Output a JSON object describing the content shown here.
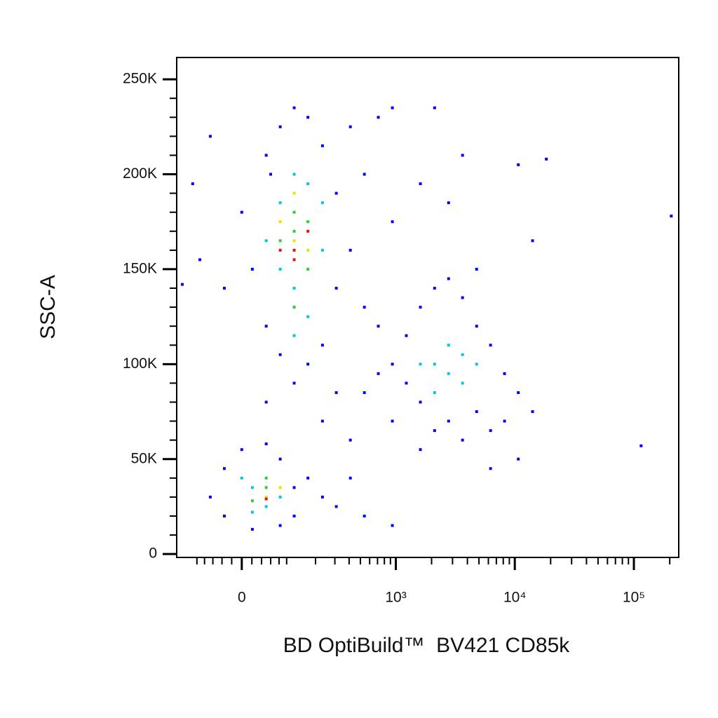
{
  "chart_data": {
    "type": "scatter",
    "x_label": "BD OptiBuild™  BV421 CD85k",
    "y_label": "SSC-A",
    "xscale": "arcsinh",
    "xscale_cofactor": 102,
    "xlim": [
      -165,
      238000
    ],
    "ylim": [
      -1800,
      261500
    ],
    "xticks": [
      0,
      {
        "value": 1000,
        "label": "10³"
      },
      {
        "value": 10000,
        "label": "10⁴"
      },
      {
        "value": 100000,
        "label": "10⁵"
      }
    ],
    "xminorticks": [
      -100,
      -80,
      -60,
      -40,
      -20,
      20,
      40,
      60,
      80,
      100,
      200,
      300,
      400,
      500,
      600,
      700,
      800,
      900,
      2000,
      3000,
      4000,
      5000,
      6000,
      7000,
      8000,
      9000,
      20000,
      30000,
      40000,
      50000,
      60000,
      70000,
      80000,
      90000,
      200000
    ],
    "yticks": [
      0,
      {
        "value": 50000,
        "label": "50K"
      },
      {
        "value": 100000,
        "label": "100K"
      },
      {
        "value": 150000,
        "label": "150K"
      },
      {
        "value": 200000,
        "label": "200K"
      },
      {
        "value": 250000,
        "label": "250K"
      }
    ],
    "yminorticks": [
      10000,
      20000,
      30000,
      40000,
      60000,
      70000,
      80000,
      90000,
      110000,
      120000,
      130000,
      140000,
      160000,
      170000,
      180000,
      190000,
      210000,
      220000,
      230000,
      240000
    ],
    "series": [
      {
        "color": "#0000ff",
        "x": [
          50,
          60,
          83,
          122,
          169,
          232,
          309,
          410,
          541,
          711,
          935,
          309,
          232,
          169,
          83,
          21,
          -35,
          0,
          50,
          410,
          541,
          711,
          122,
          50,
          232,
          410,
          309,
          1226,
          1610,
          2120,
          2780,
          3640,
          4780,
          6260,
          8200,
          10700,
          8200,
          6260,
          4780,
          3640,
          2780,
          2120,
          1610,
          1226,
          935,
          711,
          541,
          935,
          1610,
          10700,
          6260,
          14100,
          -66,
          -35,
          0,
          50,
          83,
          122,
          122,
          83,
          21,
          -35,
          169,
          232,
          309,
          410,
          541,
          935,
          -66,
          -112,
          -92,
          -145,
          115000,
          206000,
          2120,
          3640,
          10700,
          14100,
          18400,
          2780,
          1610,
          4780,
          935
        ],
        "values": [
          120000,
          200000,
          225000,
          235000,
          230000,
          215000,
          190000,
          160000,
          200000,
          230000,
          235000,
          140000,
          110000,
          100000,
          105000,
          150000,
          140000,
          180000,
          210000,
          225000,
          130000,
          120000,
          90000,
          80000,
          70000,
          60000,
          85000,
          115000,
          130000,
          140000,
          145000,
          135000,
          120000,
          110000,
          95000,
          85000,
          70000,
          65000,
          75000,
          60000,
          70000,
          65000,
          80000,
          90000,
          100000,
          95000,
          85000,
          70000,
          55000,
          50000,
          45000,
          75000,
          30000,
          45000,
          55000,
          58000,
          50000,
          35000,
          20000,
          15000,
          13000,
          20000,
          40000,
          30000,
          25000,
          40000,
          20000,
          15000,
          220000,
          195000,
          155000,
          142000,
          57000,
          178000,
          235000,
          210000,
          205000,
          165000,
          208000,
          185000,
          195000,
          150000,
          175000
        ]
      },
      {
        "color": "#00c8e8",
        "x": [
          83,
          122,
          169,
          83,
          169,
          122,
          232,
          50,
          122,
          232,
          2120,
          2780,
          3640,
          4780,
          2780,
          3640,
          1610,
          2120,
          21,
          50,
          0,
          83,
          21
        ],
        "values": [
          185000,
          200000,
          195000,
          150000,
          125000,
          115000,
          160000,
          165000,
          140000,
          185000,
          100000,
          95000,
          90000,
          100000,
          110000,
          105000,
          100000,
          85000,
          35000,
          25000,
          40000,
          30000,
          22000
        ]
      },
      {
        "color": "#33cc33",
        "x": [
          122,
          169,
          122,
          83,
          169,
          122,
          50,
          21,
          50
        ],
        "values": [
          170000,
          175000,
          180000,
          165000,
          150000,
          130000,
          35000,
          28000,
          40000
        ]
      },
      {
        "color": "#f0e000",
        "x": [
          122,
          169,
          83,
          122,
          50,
          83
        ],
        "values": [
          165000,
          160000,
          175000,
          190000,
          30000,
          35000
        ]
      },
      {
        "color": "#ee1100",
        "x": [
          122,
          122,
          169,
          83,
          50
        ],
        "values": [
          160000,
          155000,
          170000,
          160000,
          29000
        ]
      }
    ]
  }
}
